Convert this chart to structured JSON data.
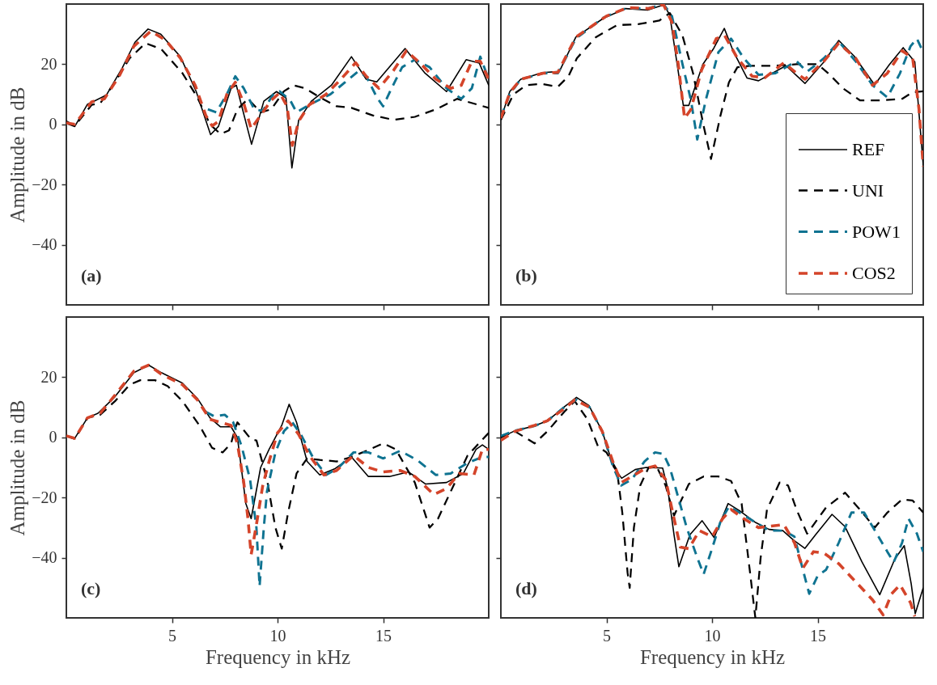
{
  "chart_data": [
    {
      "type": "line",
      "ylabel": "Amplitude in dB",
      "xlim": [
        0,
        20
      ],
      "ylim": [
        -60,
        40
      ],
      "xticks": [
        5,
        10,
        15
      ],
      "yticks": [
        -40,
        -20,
        0,
        20
      ],
      "tick_labels": "y",
      "grid": false,
      "annotations": [
        "(a)"
      ],
      "series": [
        {
          "color": "#000000",
          "line_style": "solid",
          "x": [
            0,
            0.4,
            1.0,
            1.4,
            1.9,
            2.65,
            3.25,
            3.87,
            4.47,
            5.4,
            6.15,
            6.83,
            7.2,
            7.8,
            8.05,
            8.77,
            9.35,
            9.95,
            10.4,
            10.68,
            11.0,
            11.6,
            12.55,
            13.5,
            14.2,
            14.7,
            16.04,
            16.96,
            18.0,
            18.93,
            19.55,
            20
          ],
          "values": [
            0.3,
            -0.7,
            6.7,
            8,
            9.8,
            18.8,
            27.3,
            31.7,
            30,
            22.5,
            10.9,
            -3.4,
            -0.7,
            12,
            13,
            -6.6,
            7.7,
            10.9,
            8.8,
            -14.5,
            1.4,
            7.7,
            13,
            22.5,
            15,
            14.1,
            25.2,
            17.2,
            10.9,
            21.5,
            20.4,
            13
          ]
        },
        {
          "color": "#000000",
          "line_style": "dashed",
          "x": [
            0,
            0.4,
            1.2,
            1.6,
            2.3,
            3.0,
            3.75,
            4.5,
            5.5,
            6.2,
            6.8,
            7.3,
            7.7,
            8.1,
            8.6,
            9.2,
            9.7,
            10.3,
            10.75,
            11.3,
            12.0,
            12.8,
            13.5,
            14.5,
            15.5,
            16.5,
            17.5,
            18.5,
            19.5,
            20
          ],
          "values": [
            1,
            -0.5,
            6.5,
            7,
            14,
            22,
            27,
            25,
            17,
            9,
            0,
            -3.2,
            -2,
            5,
            8.5,
            4,
            5,
            11,
            13,
            12,
            9,
            6,
            5.5,
            3,
            1.5,
            2.5,
            5,
            8.5,
            6.5,
            5.5
          ]
        },
        {
          "color": "#0f7391",
          "line_style": "dashed",
          "x": [
            6.7,
            7.1,
            7.6,
            8.0,
            8.4,
            8.9,
            9.3,
            9.8,
            10.1,
            10.6,
            10.9,
            11.5,
            12.5,
            13.2,
            13.8,
            14.2,
            14.7,
            15.0,
            15.4,
            15.9,
            16.5,
            17.2,
            18.0,
            18.7,
            19.2,
            19.6,
            20
          ],
          "values": [
            5,
            4,
            10,
            16,
            12,
            5,
            4.5,
            10,
            11,
            8,
            4,
            6.5,
            10,
            14,
            17.5,
            16,
            9,
            6,
            12,
            19,
            21.5,
            19,
            12,
            8.5,
            12,
            22.5,
            15
          ]
        },
        {
          "color": "#d4442a",
          "line_style": "dashed",
          "x": [
            0,
            0.4,
            1.2,
            1.8,
            2.5,
            3.2,
            4.0,
            4.7,
            5.4,
            6.1,
            6.6,
            6.9,
            7.2,
            7.6,
            8.0,
            8.4,
            8.75,
            9.2,
            9.7,
            10.1,
            10.45,
            10.7,
            11.0,
            11.5,
            12.3,
            13.0,
            13.7,
            14.2,
            14.8,
            15.5,
            16.1,
            16.8,
            17.5,
            18.2,
            18.7,
            19.2,
            19.6,
            20
          ],
          "values": [
            0.5,
            0,
            7.5,
            8.5,
            16,
            26,
            31,
            28,
            22,
            13,
            3,
            -0.5,
            1,
            10,
            14,
            7,
            -1.5,
            3,
            8,
            10.5,
            6,
            -7,
            1,
            6.5,
            10,
            15,
            20.5,
            16,
            12,
            18,
            24.5,
            20,
            15,
            12,
            13,
            21,
            21,
            15
          ]
        }
      ]
    },
    {
      "type": "line",
      "xlim": [
        0,
        20
      ],
      "ylim": [
        -60,
        40
      ],
      "xticks": [
        5,
        10,
        15
      ],
      "yticks": [
        -40,
        -20,
        0,
        20
      ],
      "tick_labels": false,
      "grid": false,
      "legend": "bottom right",
      "annotations": [
        "(b)"
      ],
      "series": [
        {
          "name": "REF",
          "color": "#000000",
          "line_style": "solid",
          "x": [
            0,
            0.42,
            0.94,
            1.98,
            2.77,
            3.55,
            4.86,
            5.9,
            6.95,
            7.73,
            8.0,
            8.64,
            8.9,
            9.56,
            10.08,
            10.58,
            11.0,
            11.66,
            12.2,
            13.5,
            14.4,
            15.3,
            16.0,
            16.74,
            17.7,
            18.4,
            19.05,
            19.6,
            20
          ],
          "values": [
            1.8,
            10.9,
            15,
            17.2,
            17.6,
            29,
            35.3,
            38.5,
            38,
            39.8,
            36.2,
            6.3,
            6.3,
            19.9,
            25.3,
            31.9,
            24.4,
            15.4,
            14.5,
            19.5,
            13.6,
            20.8,
            27.9,
            22.6,
            13.1,
            19.9,
            25.5,
            20.8,
            -13.6
          ]
        },
        {
          "name": "UNI",
          "color": "#000000",
          "line_style": "dashed",
          "x": [
            0,
            0.6,
            1.2,
            1.9,
            2.7,
            3.2,
            3.6,
            4.5,
            5.5,
            6.5,
            7.5,
            8.0,
            8.6,
            9.1,
            9.6,
            9.95,
            10.4,
            10.8,
            11.2,
            11.8,
            13.0,
            14.0,
            15.0,
            15.5,
            16.2,
            17.0,
            18.0,
            19.0,
            19.5,
            20
          ],
          "values": [
            1.5,
            10,
            13,
            13.5,
            12.5,
            16,
            22,
            29,
            33,
            33.3,
            34.5,
            37,
            29.5,
            17,
            -0.5,
            -11.5,
            3,
            14,
            19,
            19.5,
            19.5,
            20,
            20,
            17,
            12,
            8,
            8,
            8.5,
            10.7,
            11
          ]
        },
        {
          "name": "POW1",
          "color": "#0f7391",
          "line_style": "dashed",
          "x": [
            0,
            0.42,
            0.94,
            2.0,
            2.7,
            3.55,
            4.86,
            5.9,
            6.95,
            7.7,
            8.1,
            8.6,
            9.0,
            9.3,
            9.7,
            10.3,
            10.9,
            11.5,
            12.2,
            13.0,
            14.0,
            14.5,
            15.3,
            16.0,
            16.8,
            17.6,
            18.3,
            18.9,
            19.4,
            19.7,
            20
          ],
          "values": [
            2.5,
            10,
            15,
            17,
            17,
            28.5,
            35.5,
            38.5,
            38.5,
            40,
            36,
            20,
            8,
            -5,
            8,
            24,
            28.5,
            22,
            16.5,
            17,
            21,
            17.5,
            22,
            27.5,
            21,
            13,
            9,
            17,
            26,
            28.5,
            24
          ]
        },
        {
          "name": "COS2",
          "color": "#d4442a",
          "line_style": "dashed",
          "x": [
            0,
            0.42,
            0.94,
            2.0,
            2.7,
            3.55,
            5.0,
            6.0,
            7.0,
            7.7,
            8.1,
            8.4,
            8.7,
            9.0,
            9.5,
            10.2,
            10.6,
            11.2,
            11.9,
            12.5,
            13.4,
            14.0,
            14.4,
            15.3,
            16.0,
            16.8,
            17.6,
            18.3,
            19.0,
            19.5,
            19.8,
            20
          ],
          "values": [
            2,
            10.5,
            15,
            17,
            17.3,
            29,
            36,
            38.8,
            38.5,
            39.8,
            34,
            20,
            2,
            5,
            18,
            28.5,
            29.5,
            22,
            16,
            15.5,
            20.5,
            17,
            15,
            21,
            27,
            22,
            13,
            17,
            24.5,
            22,
            5,
            -14
          ]
        }
      ]
    },
    {
      "type": "line",
      "xlabel": "Frequency in kHz",
      "ylabel": "Amplitude in dB",
      "xlim": [
        0,
        20
      ],
      "ylim": [
        -60,
        40
      ],
      "xticks": [
        5,
        10,
        15
      ],
      "yticks": [
        -40,
        -20,
        0,
        20
      ],
      "grid": false,
      "annotations": [
        "(c)"
      ],
      "series": [
        {
          "color": "#000000",
          "line_style": "solid",
          "x": [
            0,
            0.4,
            1.0,
            1.5,
            2.3,
            3.2,
            3.9,
            4.5,
            5.5,
            6.2,
            6.8,
            7.3,
            7.8,
            8.1,
            8.5,
            8.75,
            9.2,
            9.6,
            10.2,
            10.55,
            10.9,
            11.4,
            12.0,
            12.7,
            13.5,
            14.3,
            15.3,
            16.2,
            17.0,
            18.0,
            18.8,
            19.4,
            19.7,
            20
          ],
          "values": [
            0.5,
            -0.3,
            6.5,
            8,
            13.5,
            21.5,
            24,
            21.5,
            18,
            13,
            6.5,
            3.5,
            3.5,
            0,
            -22,
            -27,
            -10,
            -4,
            4,
            11,
            5,
            -8,
            -12.5,
            -10.5,
            -6.5,
            -13,
            -13,
            -11.5,
            -15.5,
            -15,
            -12,
            -4,
            -2.5,
            -4
          ]
        },
        {
          "color": "#000000",
          "line_style": "dashed",
          "x": [
            0,
            0.4,
            1.0,
            1.6,
            2.3,
            3.0,
            3.5,
            4.2,
            4.8,
            5.5,
            6.3,
            6.9,
            7.4,
            7.8,
            8.0,
            8.1,
            8.75,
            9.0,
            9.5,
            9.9,
            10.2,
            10.5,
            10.9,
            11.4,
            12.0,
            12.8,
            13.5,
            14.2,
            15.0,
            15.6,
            16.5,
            17.2,
            17.6,
            18.2,
            19.0,
            19.4,
            20
          ],
          "values": [
            0.5,
            -0.5,
            6.5,
            7.5,
            12,
            17.5,
            19,
            19,
            17,
            12,
            4,
            -3.5,
            -5,
            -2,
            3,
            5,
            -0.7,
            -1,
            -14,
            -30,
            -37,
            -25,
            -12,
            -7,
            -7.5,
            -8,
            -6.5,
            -4.5,
            -2,
            -4,
            -15,
            -30,
            -27,
            -18,
            -6,
            -3,
            1.5
          ]
        },
        {
          "color": "#0f7391",
          "line_style": "dashed",
          "x": [
            6.6,
            7.0,
            7.5,
            7.9,
            8.3,
            8.7,
            9.0,
            9.15,
            9.35,
            9.5,
            9.9,
            10.3,
            10.7,
            11.1,
            11.7,
            12.3,
            12.9,
            13.6,
            14.3,
            15.0,
            15.8,
            16.6,
            17.5,
            18.2,
            19.0,
            19.7,
            20
          ],
          "values": [
            8.5,
            7,
            7.5,
            5,
            -3,
            -14,
            -30,
            -49.5,
            -30,
            -18,
            -5,
            2,
            5,
            1,
            -7,
            -12.5,
            -10,
            -5,
            -5,
            -7,
            -4.5,
            -7.5,
            -12.5,
            -12,
            -8.5,
            -6.5,
            -6.5
          ]
        },
        {
          "color": "#d4442a",
          "line_style": "dashed",
          "x": [
            0,
            0.4,
            1.0,
            1.6,
            2.3,
            3.2,
            3.9,
            4.5,
            5.5,
            6.2,
            6.8,
            7.3,
            7.8,
            8.1,
            8.4,
            8.6,
            8.75,
            9.0,
            9.3,
            9.6,
            10.0,
            10.5,
            11.0,
            11.5,
            12.2,
            12.8,
            13.6,
            14.3,
            15.0,
            15.8,
            16.5,
            17.4,
            18.0,
            18.6,
            19.3,
            19.7,
            20
          ],
          "values": [
            0.5,
            -0.3,
            6.5,
            8,
            14,
            22,
            24,
            21,
            17.5,
            12.5,
            6,
            5,
            4,
            -2,
            -15,
            -27,
            -39,
            -29,
            -16,
            -8,
            1.5,
            5.5,
            1,
            -6,
            -12.5,
            -11,
            -6,
            -10,
            -11.5,
            -11,
            -13,
            -19,
            -17,
            -12,
            -12.5,
            -4,
            -4
          ]
        }
      ]
    },
    {
      "type": "line",
      "xlabel": "Frequency in kHz",
      "xlim": [
        0,
        20
      ],
      "ylim": [
        -60,
        40
      ],
      "xticks": [
        5,
        10,
        15
      ],
      "yticks": [
        -40,
        -20,
        0,
        20
      ],
      "tick_labels": "x",
      "grid": false,
      "annotations": [
        "(d)"
      ],
      "series": [
        {
          "color": "#000000",
          "line_style": "solid",
          "x": [
            0,
            0.67,
            1.58,
            2.23,
            3.0,
            3.58,
            4.17,
            4.8,
            5.33,
            5.72,
            6.36,
            6.88,
            7.66,
            7.9,
            8.2,
            8.43,
            8.95,
            9.53,
            10.1,
            10.76,
            11.28,
            12.06,
            12.7,
            13.35,
            13.87,
            14.4,
            14.9,
            15.68,
            16.3,
            17.1,
            17.94,
            18.65,
            19.1,
            19.43,
            19.62,
            20
          ],
          "values": [
            0,
            2.2,
            3.8,
            5.6,
            10.1,
            13.3,
            10.6,
            2,
            -9.8,
            -13.6,
            -10.7,
            -10,
            -10.2,
            -17,
            -32.4,
            -43,
            -32.4,
            -27.7,
            -33.3,
            -22,
            -24.3,
            -28.3,
            -30.6,
            -31,
            -34.2,
            -36.9,
            -32.4,
            -25.6,
            -29.7,
            -41.4,
            -52.3,
            -40.5,
            -36,
            -48.7,
            -58.6,
            -50
          ]
        },
        {
          "color": "#000000",
          "line_style": "dashed",
          "x": [
            0,
            0.67,
            1.6,
            2.2,
            3.0,
            3.5,
            4.1,
            4.6,
            5.0,
            5.5,
            5.75,
            6.0,
            6.1,
            6.3,
            6.6,
            7.0,
            7.4,
            7.8,
            8.2,
            8.6,
            8.9,
            9.6,
            10.3,
            10.9,
            11.4,
            11.8,
            12.05,
            12.3,
            12.6,
            13.2,
            13.6,
            14.0,
            14.5,
            15.4,
            16.3,
            17.0,
            17.7,
            18.3,
            19.0,
            19.5,
            20
          ],
          "values": [
            0,
            2,
            -2,
            2,
            8.5,
            12,
            6,
            -3,
            -5,
            -11,
            -25,
            -45,
            -50,
            -30,
            -16,
            -10,
            -10,
            -16,
            -26,
            -20,
            -15.5,
            -13,
            -13,
            -14.5,
            -22,
            -45,
            -60,
            -40,
            -24,
            -15,
            -16,
            -24,
            -32,
            -23.3,
            -18.4,
            -24,
            -30,
            -25,
            -20.6,
            -21,
            -25
          ]
        },
        {
          "color": "#0f7391",
          "line_style": "dashed",
          "x": [
            0,
            0.67,
            1.6,
            2.2,
            3.0,
            3.58,
            4.2,
            4.8,
            5.3,
            5.7,
            6.2,
            6.8,
            7.3,
            7.7,
            8.0,
            8.4,
            8.8,
            9.3,
            9.6,
            10.0,
            10.4,
            10.8,
            11.3,
            12.0,
            12.7,
            13.4,
            13.9,
            14.3,
            14.6,
            15.0,
            15.4,
            16.0,
            16.6,
            17.2,
            17.8,
            18.3,
            18.6,
            19.0,
            19.3,
            19.7,
            20
          ],
          "values": [
            0.5,
            2.2,
            3.8,
            5.5,
            10,
            12.5,
            10,
            2,
            -9.5,
            -16,
            -14,
            -8,
            -5,
            -5.5,
            -10,
            -20,
            -30,
            -40,
            -45.5,
            -37,
            -28,
            -23,
            -25,
            -28,
            -31,
            -31,
            -33,
            -44,
            -52,
            -46,
            -44,
            -35,
            -25,
            -25,
            -32,
            -38,
            -41.5,
            -35,
            -27,
            -32,
            -38
          ]
        },
        {
          "color": "#d4442a",
          "line_style": "dashed",
          "x": [
            0,
            0.67,
            1.6,
            2.2,
            3.0,
            3.5,
            4.2,
            4.8,
            5.3,
            5.7,
            6.2,
            6.8,
            7.3,
            7.8,
            8.2,
            8.5,
            8.9,
            9.4,
            10.0,
            10.5,
            10.9,
            11.5,
            12.2,
            12.8,
            13.4,
            13.9,
            14.3,
            14.8,
            15.3,
            16.0,
            16.8,
            17.6,
            18.1,
            18.5,
            18.9,
            19.4,
            19.6
          ],
          "values": [
            -1,
            2,
            4,
            5.5,
            9.5,
            12.5,
            10,
            2,
            -8,
            -15,
            -13,
            -10.5,
            -9.5,
            -14,
            -27,
            -36.5,
            -37,
            -31,
            -33,
            -27,
            -24,
            -27,
            -30,
            -29.5,
            -29,
            -35,
            -43.5,
            -38,
            -38.5,
            -42,
            -48,
            -54,
            -59,
            -52,
            -49,
            -55,
            -59.5
          ]
        }
      ]
    }
  ]
}
